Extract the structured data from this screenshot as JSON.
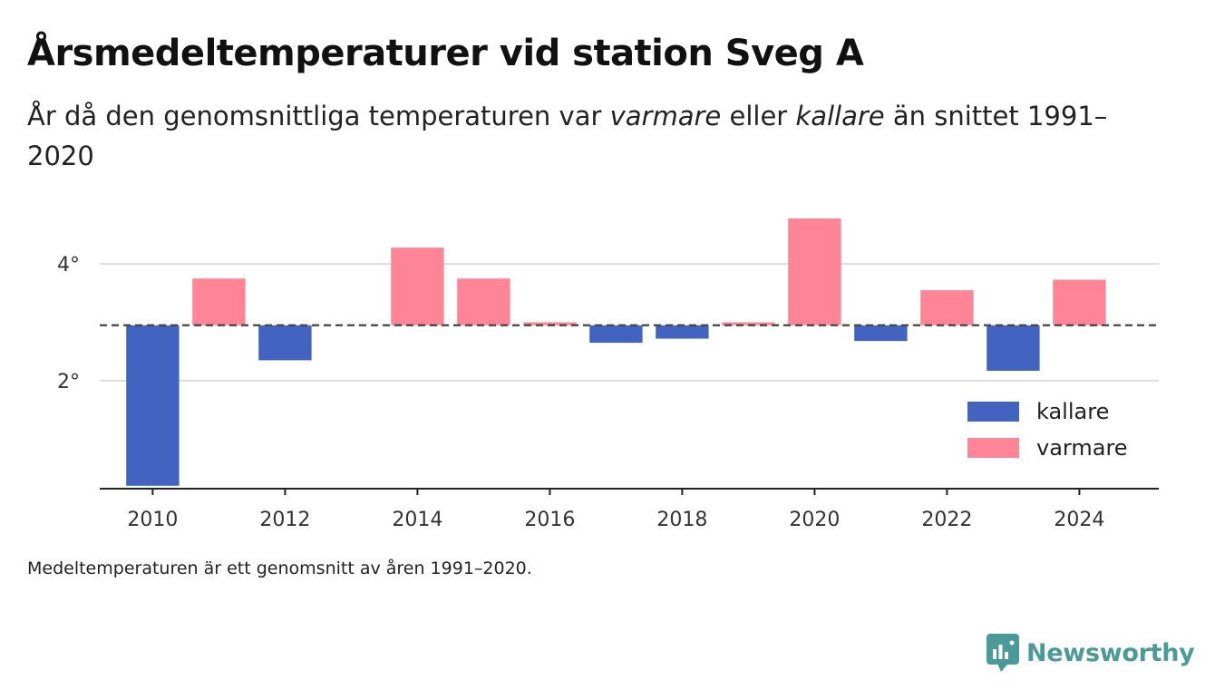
{
  "title": "Årsmedeltemperaturer vid station Sveg A",
  "subtitle": {
    "part1": "År då den genomsnittliga temperaturen var ",
    "warm_word": "varmare",
    "part2": " eller ",
    "cold_word": "kallare",
    "part3": " än snittet 1991–2020"
  },
  "footnote": "Medeltemperaturen är ett genomsnitt av åren 1991–2020.",
  "brand": {
    "name": "Newsworthy",
    "color": "#4a9a98",
    "icon": "newsworthy-logo-icon"
  },
  "chart_data": {
    "type": "bar",
    "baseline": 2.95,
    "ylim": [
      0.15,
      4.95
    ],
    "xlim": [
      2009.2,
      2025.2
    ],
    "y_ticks": [
      {
        "value": 2,
        "label": "2°"
      },
      {
        "value": 4,
        "label": "4°"
      }
    ],
    "x_ticks": [
      2010,
      2012,
      2014,
      2016,
      2018,
      2020,
      2022,
      2024
    ],
    "colors": {
      "kallare": "#4263c0",
      "varmare": "#ff8496"
    },
    "legend": {
      "position": "bottom-right",
      "entries": [
        {
          "key": "kallare",
          "label": "kallare"
        },
        {
          "key": "varmare",
          "label": "varmare"
        }
      ]
    },
    "bars": [
      {
        "year": 2010,
        "value": 0.2
      },
      {
        "year": 2011,
        "value": 3.75
      },
      {
        "year": 2012,
        "value": 2.35
      },
      {
        "year": 2014,
        "value": 4.28
      },
      {
        "year": 2015,
        "value": 3.75
      },
      {
        "year": 2016,
        "value": 3.0
      },
      {
        "year": 2017,
        "value": 2.65
      },
      {
        "year": 2018,
        "value": 2.72
      },
      {
        "year": 2019,
        "value": 3.0
      },
      {
        "year": 2020,
        "value": 4.78
      },
      {
        "year": 2021,
        "value": 2.68
      },
      {
        "year": 2022,
        "value": 3.55
      },
      {
        "year": 2023,
        "value": 2.17
      },
      {
        "year": 2024,
        "value": 3.73
      }
    ]
  }
}
